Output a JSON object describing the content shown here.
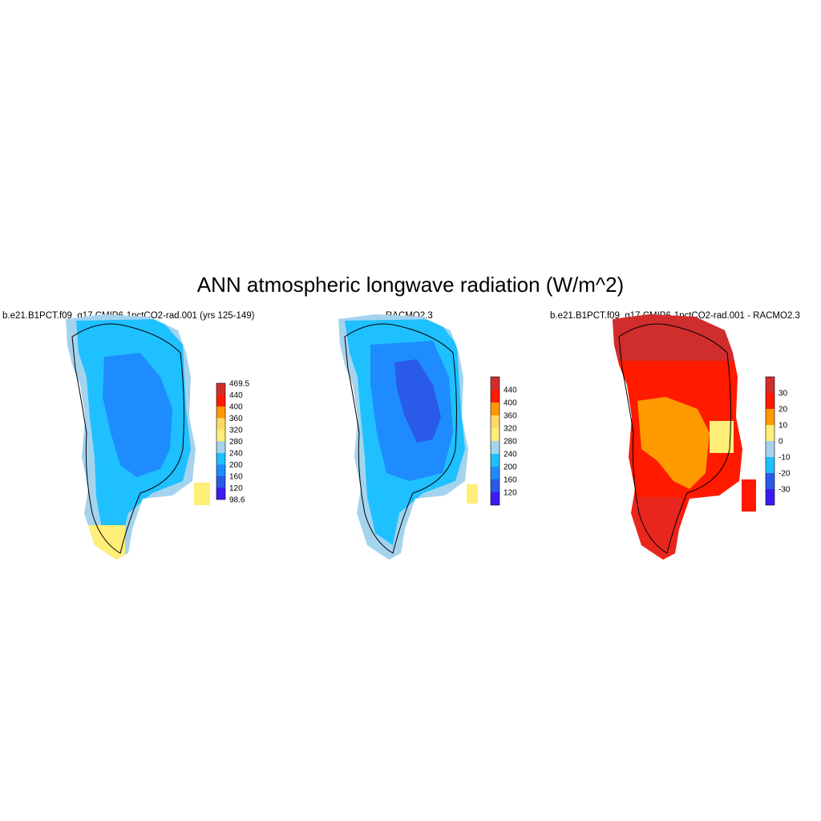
{
  "figure": {
    "title": "ANN atmospheric longwave radiation (W/m^2)",
    "panels": [
      {
        "id": "model",
        "title": "b.e21.B1PCT.f09_g17.CMIP6-1pctCO2-rad.001 (yrs 125-149)",
        "colorbar": {
          "labels": [
            "469.5",
            "440",
            "400",
            "360",
            "320",
            "280",
            "240",
            "200",
            "160",
            "120",
            "98.6"
          ],
          "colors": [
            "#d02d2d",
            "#ff1a00",
            "#ff9900",
            "#ffd966",
            "#ffee77",
            "#a4d3ee",
            "#1ec0ff",
            "#1e8cff",
            "#2a5ae8",
            "#3b1cf0"
          ]
        },
        "field_colors": {
          "edge": "#a4d3ee",
          "interior": "#1ec0ff",
          "core": "#1e8cff",
          "coast_warm": "#ffee77"
        }
      },
      {
        "id": "racmo",
        "title": "RACMO2.3",
        "colorbar": {
          "labels": [
            "440",
            "400",
            "360",
            "320",
            "280",
            "240",
            "200",
            "160",
            "120"
          ],
          "colors": [
            "#d02d2d",
            "#ff1a00",
            "#ff9900",
            "#ffd966",
            "#ffee77",
            "#a4d3ee",
            "#1ec0ff",
            "#1e8cff",
            "#2a5ae8",
            "#3b1cf0"
          ]
        },
        "field_colors": {
          "edge": "#a4d3ee",
          "interior": "#1ec0ff",
          "core": "#1e8cff",
          "center": "#2a5ae8",
          "coast_warm": "#ffee77"
        }
      },
      {
        "id": "difference",
        "title": "b.e21.B1PCT.f09_g17.CMIP6-1pctCO2-rad.001 - RACMO2.3",
        "colorbar": {
          "labels": [
            "30",
            "20",
            "10",
            "0",
            "-10",
            "-20",
            "-30"
          ],
          "colors": [
            "#d02d2d",
            "#ff1a00",
            "#ff9900",
            "#ffee77",
            "#a4d3ee",
            "#1ec0ff",
            "#2a5ae8",
            "#3b1cf0"
          ]
        },
        "field_colors": {
          "north": "#d02d2d",
          "main": "#ff1a00",
          "center": "#ff9900",
          "patch": "#ffee77",
          "south": "#e8261e"
        }
      }
    ]
  }
}
